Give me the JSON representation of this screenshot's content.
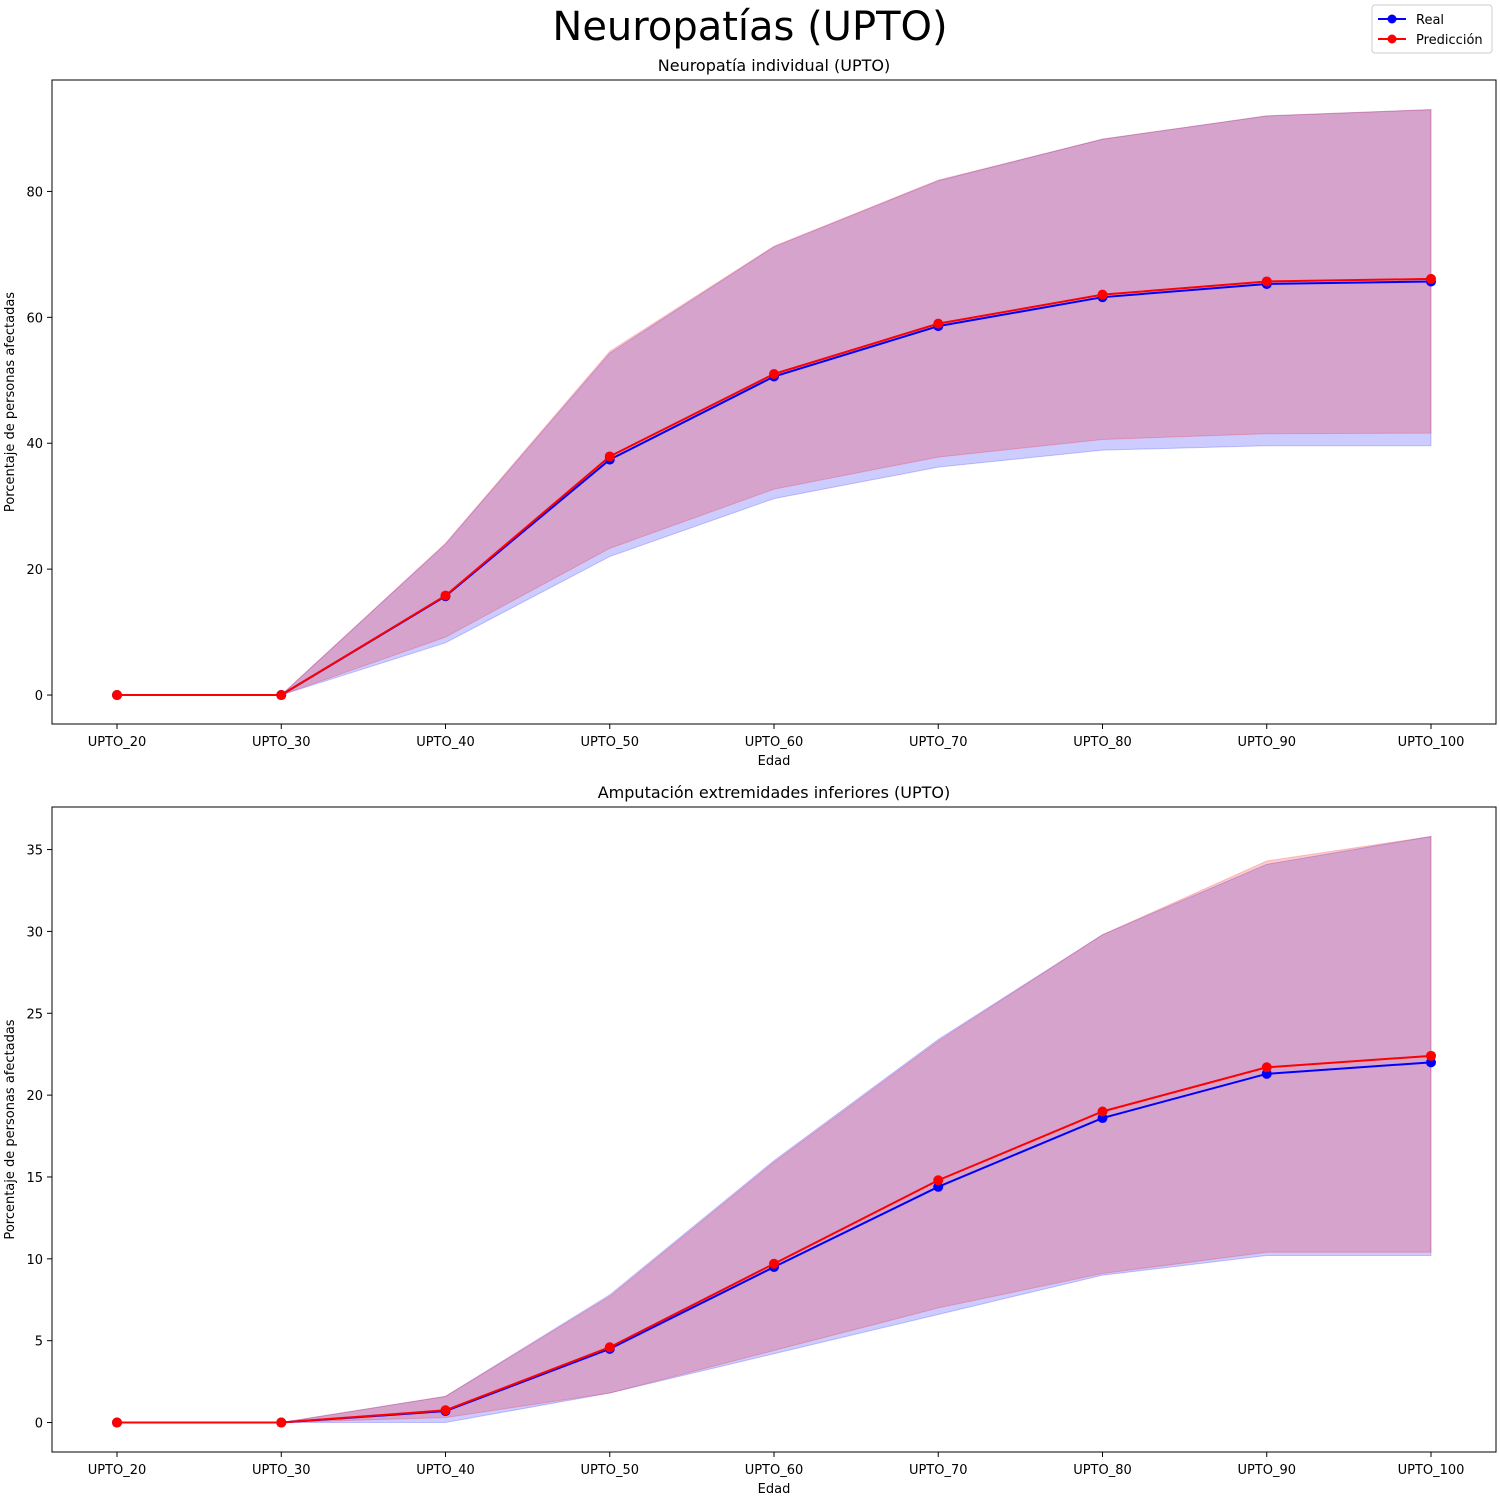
{
  "suptitle": "Neuropatías (UPTO)",
  "legend": [
    {
      "label": "Real",
      "color": "#0000ff"
    },
    {
      "label": "Predicción",
      "color": "#ff0000"
    }
  ],
  "chart_data": [
    {
      "type": "line",
      "title": "Neuropatía individual (UPTO)",
      "xlabel": "Edad",
      "ylabel": "Porcentaje de personas afectadas",
      "categories": [
        "UPTO_20",
        "UPTO_30",
        "UPTO_40",
        "UPTO_50",
        "UPTO_60",
        "UPTO_70",
        "UPTO_80",
        "UPTO_90",
        "UPTO_100"
      ],
      "ylim": [
        -4.6,
        97.7
      ],
      "yticks": [
        0,
        20,
        40,
        60,
        80
      ],
      "legend_position": "top-right",
      "series": [
        {
          "name": "Real",
          "color": "#0000ff",
          "values": [
            0,
            0,
            15.7,
            37.4,
            50.6,
            58.6,
            63.2,
            65.3,
            65.7
          ],
          "band_low": [
            0,
            0,
            8.3,
            22.0,
            31.2,
            36.2,
            38.9,
            39.6,
            39.6
          ],
          "band_high": [
            0,
            0,
            24.0,
            54.3,
            71.2,
            81.7,
            88.3,
            92.0,
            93.0
          ]
        },
        {
          "name": "Predicción",
          "color": "#ff0000",
          "values": [
            0,
            0,
            15.8,
            37.9,
            51.0,
            59.0,
            63.6,
            65.7,
            66.1
          ],
          "band_low": [
            0,
            0,
            9.2,
            23.3,
            32.7,
            37.8,
            40.6,
            41.5,
            41.6
          ],
          "band_high": [
            0,
            0,
            24.1,
            54.6,
            71.3,
            81.8,
            88.3,
            92.0,
            93.0
          ]
        }
      ]
    },
    {
      "type": "line",
      "title": "Amputación extremidades inferiores (UPTO)",
      "xlabel": "Edad",
      "ylabel": "Porcentaje de personas afectadas",
      "categories": [
        "UPTO_20",
        "UPTO_30",
        "UPTO_40",
        "UPTO_50",
        "UPTO_60",
        "UPTO_70",
        "UPTO_80",
        "UPTO_90",
        "UPTO_100"
      ],
      "ylim": [
        -1.8,
        37.6
      ],
      "yticks": [
        0,
        5,
        10,
        15,
        20,
        25,
        30,
        35
      ],
      "series": [
        {
          "name": "Real",
          "color": "#0000ff",
          "values": [
            0,
            0,
            0.7,
            4.5,
            9.5,
            14.4,
            18.6,
            21.3,
            22.0
          ],
          "band_low": [
            0,
            0,
            0.0,
            1.8,
            4.2,
            6.6,
            9.0,
            10.2,
            10.2
          ],
          "band_high": [
            0,
            0,
            1.6,
            7.8,
            16.0,
            23.4,
            29.8,
            34.1,
            35.8
          ]
        },
        {
          "name": "Predicción",
          "color": "#ff0000",
          "values": [
            0,
            0,
            0.75,
            4.6,
            9.7,
            14.8,
            19.0,
            21.7,
            22.4
          ],
          "band_low": [
            0,
            0,
            0.3,
            1.8,
            4.4,
            7.0,
            9.1,
            10.4,
            10.4
          ],
          "band_high": [
            0,
            0,
            1.6,
            7.7,
            15.9,
            23.3,
            29.8,
            34.3,
            35.8
          ]
        }
      ]
    }
  ]
}
